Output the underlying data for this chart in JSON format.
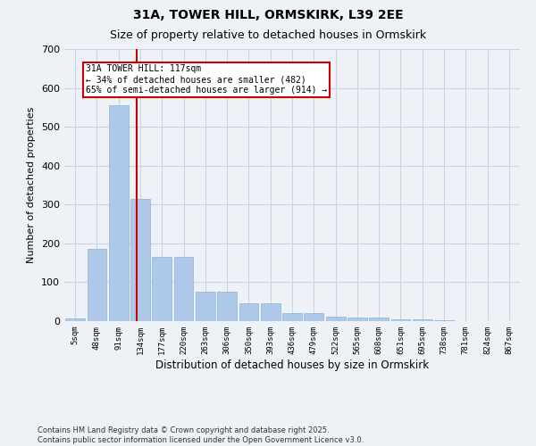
{
  "title1": "31A, TOWER HILL, ORMSKIRK, L39 2EE",
  "title2": "Size of property relative to detached houses in Ormskirk",
  "xlabel": "Distribution of detached houses by size in Ormskirk",
  "ylabel": "Number of detached properties",
  "categories": [
    "5sqm",
    "48sqm",
    "91sqm",
    "134sqm",
    "177sqm",
    "220sqm",
    "263sqm",
    "306sqm",
    "350sqm",
    "393sqm",
    "436sqm",
    "479sqm",
    "522sqm",
    "565sqm",
    "608sqm",
    "651sqm",
    "695sqm",
    "738sqm",
    "781sqm",
    "824sqm",
    "867sqm"
  ],
  "values": [
    7,
    185,
    555,
    315,
    165,
    165,
    75,
    75,
    45,
    45,
    20,
    20,
    12,
    10,
    10,
    5,
    5,
    3,
    1,
    0,
    0
  ],
  "bar_color": "#adc8e8",
  "bar_edge_color": "#8ab4d8",
  "grid_color": "#c5d5e5",
  "background_color": "#eef2f7",
  "vline_x_data": 2.85,
  "vline_color": "#cc0000",
  "annotation_text": "31A TOWER HILL: 117sqm\n← 34% of detached houses are smaller (482)\n65% of semi-detached houses are larger (914) →",
  "footer_text": "Contains HM Land Registry data © Crown copyright and database right 2025.\nContains public sector information licensed under the Open Government Licence v3.0.",
  "ylim": [
    0,
    700
  ],
  "yticks": [
    0,
    100,
    200,
    300,
    400,
    500,
    600,
    700
  ]
}
